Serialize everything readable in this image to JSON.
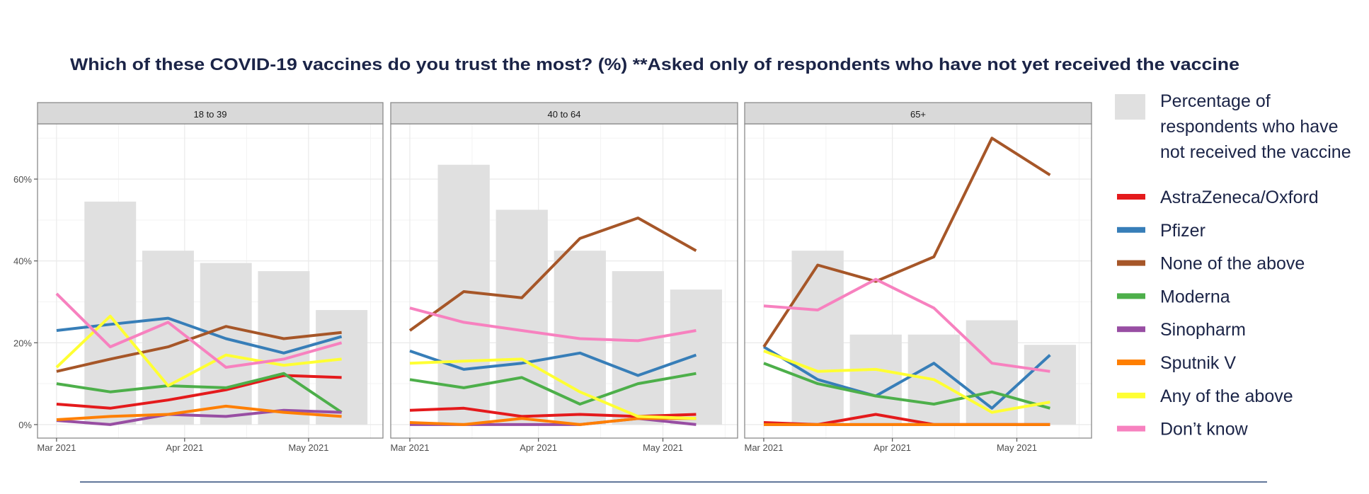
{
  "title": "Which of these COVID-19 vaccines do you trust the most? (%) **Asked only of respondents who have not yet received the vaccine",
  "chart_data": {
    "type": "line",
    "bar_series": {
      "name": "Percentage of respondents who have not received the vaccine",
      "color": "#e0e0e0"
    },
    "x_dates": [
      "2021-03-01",
      "2021-03-14",
      "2021-03-28",
      "2021-04-11",
      "2021-04-25",
      "2021-05-09"
    ],
    "bar_dates": [
      "2021-03-14",
      "2021-03-28",
      "2021-04-11",
      "2021-04-25",
      "2021-05-09"
    ],
    "x_tick_labels": [
      "Mar 2021",
      "Apr 2021",
      "May 2021"
    ],
    "x_tick_dates": [
      "2021-03-01",
      "2021-04-01",
      "2021-05-01"
    ],
    "y_tick_labels": [
      "0%",
      "20%",
      "40%",
      "60%"
    ],
    "y_ticks": [
      0,
      20,
      40,
      60
    ],
    "ylim": [
      -3.3,
      73.5
    ],
    "grid": true,
    "legend_position": "right",
    "series_meta": [
      {
        "name": "AstraZeneca/Oxford",
        "color": "#e41a1c"
      },
      {
        "name": "Pfizer",
        "color": "#377eb8"
      },
      {
        "name": "None of the above",
        "color": "#a65628"
      },
      {
        "name": "Moderna",
        "color": "#4daf4a"
      },
      {
        "name": "Sinopharm",
        "color": "#984ea3"
      },
      {
        "name": "Sputnik V",
        "color": "#ff7f00"
      },
      {
        "name": "Any of the above",
        "color": "#ffff33"
      },
      {
        "name": "Don’t know",
        "color": "#f781bf"
      }
    ],
    "panels": [
      {
        "label": "18 to 39",
        "bars": [
          54.5,
          42.5,
          39.5,
          37.5,
          28
        ],
        "series": [
          [
            5,
            4,
            6,
            8.5,
            12,
            11.5
          ],
          [
            23,
            24.5,
            26,
            21,
            17.5,
            21.5
          ],
          [
            13,
            16,
            19,
            24,
            21,
            22.5
          ],
          [
            10,
            8,
            9.5,
            9,
            12.5,
            3
          ],
          [
            1,
            0,
            2.5,
            2,
            3.5,
            3
          ],
          [
            1.2,
            2,
            2.5,
            4.5,
            3,
            2
          ],
          [
            14,
            26.5,
            9.5,
            17,
            14.5,
            16
          ],
          [
            32,
            19,
            25,
            14,
            16,
            20
          ]
        ]
      },
      {
        "label": "40 to 64",
        "bars": [
          63.5,
          52.5,
          42.5,
          37.5,
          33
        ],
        "series": [
          [
            3.5,
            4,
            2,
            2.5,
            2,
            2.5
          ],
          [
            18,
            13.5,
            15,
            17.5,
            12,
            17
          ],
          [
            23,
            32.5,
            31,
            45.5,
            50.5,
            42.5
          ],
          [
            11,
            9,
            11.5,
            5,
            10,
            12.5
          ],
          [
            0,
            0,
            0,
            0,
            1.5,
            0
          ],
          [
            0.5,
            0,
            1.5,
            0,
            1.5,
            1.5
          ],
          [
            15,
            15.5,
            16,
            8,
            2,
            1.5
          ],
          [
            28.5,
            25,
            23,
            21,
            20.5,
            23
          ]
        ]
      },
      {
        "label": "65+",
        "bars": [
          42.5,
          22,
          22,
          25.5,
          19.5
        ],
        "series": [
          [
            0.5,
            0,
            2.5,
            0,
            0,
            0
          ],
          [
            19,
            11,
            7,
            15,
            4,
            17
          ],
          [
            19,
            39,
            35,
            41,
            70,
            61
          ],
          [
            15,
            10,
            7,
            5,
            8,
            4
          ],
          [
            0,
            0,
            0,
            0,
            0,
            0
          ],
          [
            0,
            0,
            0,
            0,
            0,
            0
          ],
          [
            18,
            13,
            13.5,
            11,
            3,
            5.5
          ],
          [
            29,
            28,
            35.5,
            28.5,
            15,
            13
          ]
        ]
      }
    ]
  },
  "legend": {
    "bar_label_lines": [
      "Percentage of",
      "respondents who have",
      "not received the vaccine"
    ]
  },
  "colors": {
    "title": "#1b2447",
    "divider": "#2f4a7a"
  }
}
